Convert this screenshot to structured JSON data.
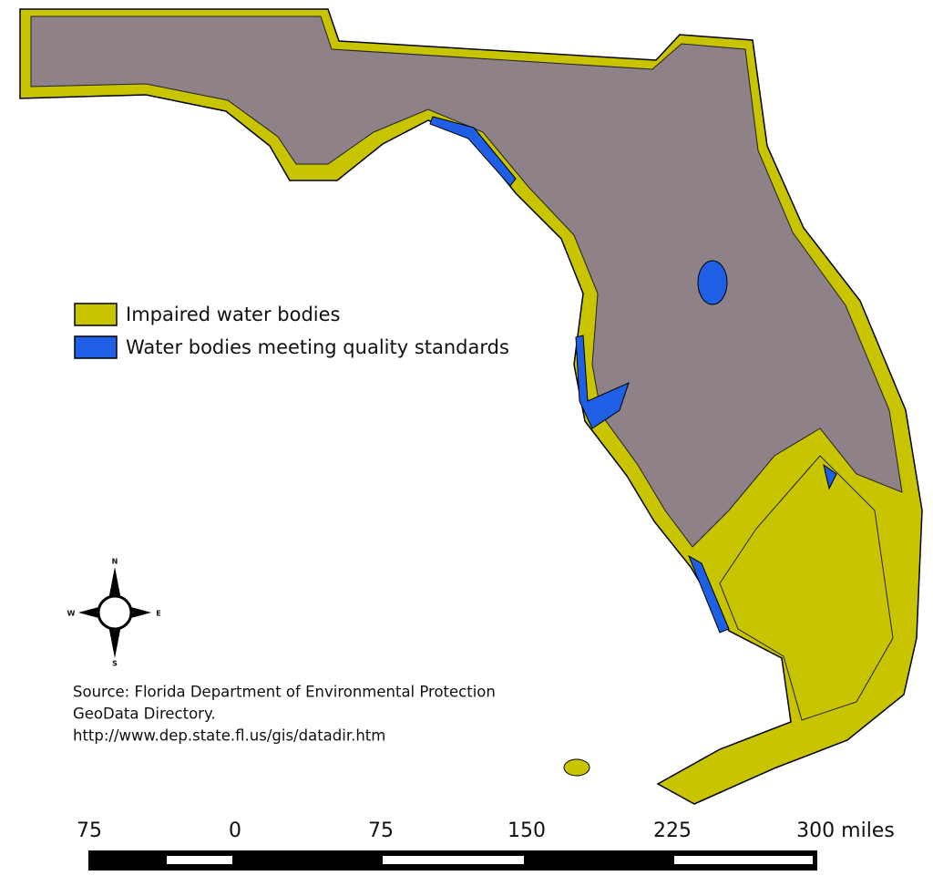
{
  "legend": [
    {
      "label": "Impaired water bodies",
      "color": "#c8c400"
    },
    {
      "label": "Water bodies meeting quality standards",
      "color": "#1f5fe6"
    }
  ],
  "compass": {
    "north": "N",
    "east": "E",
    "south": "S",
    "west": "W"
  },
  "source": [
    "Source: Florida Department of Environmental Protection",
    "GeoData Directory.",
    "http://www.dep.state.fl.us/gis/datadir.htm"
  ],
  "scale_bar": {
    "labels": [
      "75",
      "0",
      "75",
      "150",
      "225",
      "300 miles"
    ]
  }
}
